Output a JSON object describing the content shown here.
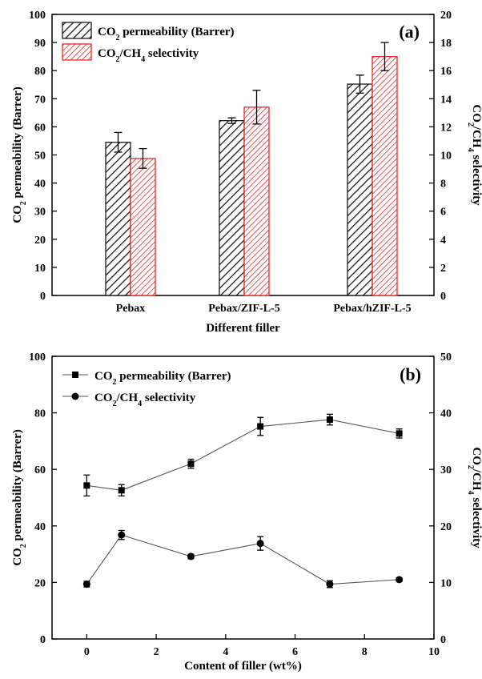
{
  "colors": {
    "permeability": "#1a1a1a",
    "selectivity": "#e8282a",
    "axis": "#000000"
  },
  "chart_data": [
    {
      "type": "bar",
      "panel_label": "(a)",
      "categories": [
        "Pebax",
        "Pebax/ZIF-L-5",
        "Pebax/hZIF-L-5"
      ],
      "xlabel": "Different filler",
      "ylabel": {
        "main": "CO",
        "sub": "2",
        "rest": " permeability (Barrer)"
      },
      "y2label": {
        "a": "CO",
        "a_sub": "2",
        "b": "/CH",
        "b_sub": "4",
        "c": " selectivity"
      },
      "ylim": [
        0,
        100
      ],
      "y2lim": [
        0,
        20
      ],
      "yticks": [
        "0",
        "10",
        "20",
        "30",
        "40",
        "50",
        "60",
        "70",
        "80",
        "90",
        "100"
      ],
      "y2ticks": [
        "0",
        "2",
        "4",
        "6",
        "8",
        "10",
        "12",
        "14",
        "16",
        "18",
        "20"
      ],
      "series": [
        {
          "name": {
            "a": "CO",
            "a_sub": "2",
            "rest": " permeability (Barrer)"
          },
          "axis": "left",
          "values": [
            54.5,
            62.2,
            75.2
          ],
          "errors": [
            3.5,
            1.0,
            3.2
          ]
        },
        {
          "name": {
            "a": "CO",
            "a_sub": "2",
            "b": "/CH",
            "b_sub": "4",
            "rest": " selectivity"
          },
          "axis": "right",
          "values": [
            9.75,
            13.4,
            17.0
          ],
          "errors": [
            0.7,
            1.2,
            1.0
          ]
        }
      ],
      "legend_position": "top-left"
    },
    {
      "type": "line",
      "panel_label": "(b)",
      "xlabel": "Content of filler (wt%)",
      "ylabel": {
        "main": "CO",
        "sub": "2",
        "rest": " permeability (Barrer)"
      },
      "y2label": {
        "a": "CO",
        "a_sub": "2",
        "b": "/CH",
        "b_sub": "4",
        "c": " selectivity"
      },
      "xlim": [
        -1,
        10
      ],
      "ylim": [
        0,
        100
      ],
      "y2lim": [
        0,
        50
      ],
      "xticks": [
        "0",
        "2",
        "4",
        "6",
        "8",
        "10"
      ],
      "yticks": [
        "0",
        "20",
        "40",
        "60",
        "80",
        "100"
      ],
      "y2ticks": [
        "0",
        "10",
        "20",
        "30",
        "40",
        "50"
      ],
      "x": [
        0,
        1,
        3,
        5,
        7,
        9
      ],
      "series": [
        {
          "name": {
            "a": "CO",
            "a_sub": "2",
            "rest": " permeability (Barrer)"
          },
          "axis": "left",
          "marker": "square",
          "values": [
            54.3,
            52.6,
            62.0,
            75.2,
            77.6,
            72.7
          ],
          "errors": [
            3.7,
            2.0,
            1.6,
            3.2,
            1.9,
            1.6
          ]
        },
        {
          "name": {
            "a": "CO",
            "a_sub": "2",
            "b": "/CH",
            "b_sub": "4",
            "rest": " selectivity"
          },
          "axis": "right",
          "marker": "circle",
          "values": [
            9.7,
            18.4,
            14.6,
            16.9,
            9.7,
            10.5
          ],
          "errors": [
            0.5,
            0.8,
            0.4,
            1.2,
            0.6,
            0.3
          ]
        }
      ],
      "legend_position": "top-left"
    }
  ]
}
